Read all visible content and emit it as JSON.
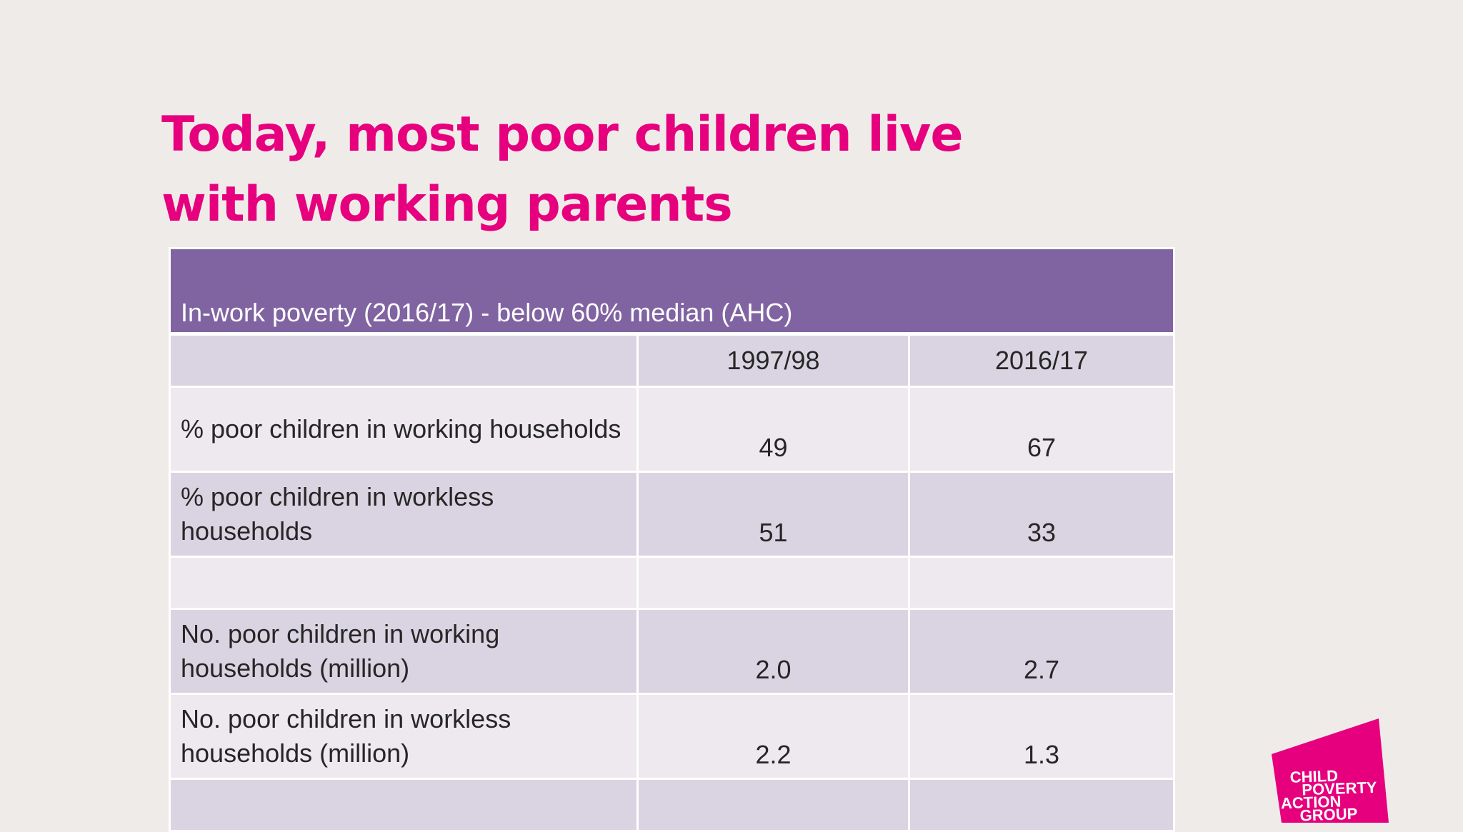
{
  "slide": {
    "title": "Today, most poor children live with working parents"
  },
  "table": {
    "caption": "In-work poverty (2016/17) - below 60% median (AHC)",
    "columns": [
      "",
      "1997/98",
      "2016/17"
    ],
    "rows": [
      {
        "label": "% poor children in working households",
        "values": [
          "49",
          "67"
        ]
      },
      {
        "label": "% poor children in workless households",
        "values": [
          "51",
          "33"
        ]
      },
      {
        "label": "",
        "values": [
          "",
          ""
        ]
      },
      {
        "label": "No. poor children in working households (million)",
        "values": [
          "2.0",
          "2.7"
        ]
      },
      {
        "label": "No. poor children in workless households (million)",
        "values": [
          "2.2",
          "1.3"
        ]
      },
      {
        "label": "",
        "values": [
          "",
          ""
        ]
      }
    ]
  },
  "logo": {
    "lines": [
      "CHILD",
      "POVERTY",
      "ACTION",
      "GROUP"
    ]
  },
  "colors": {
    "title": "#e6007e",
    "table_header": "#8064a2",
    "row_dark": "#dad4e2",
    "row_light": "#ede9ee",
    "background": "#efebe9"
  }
}
